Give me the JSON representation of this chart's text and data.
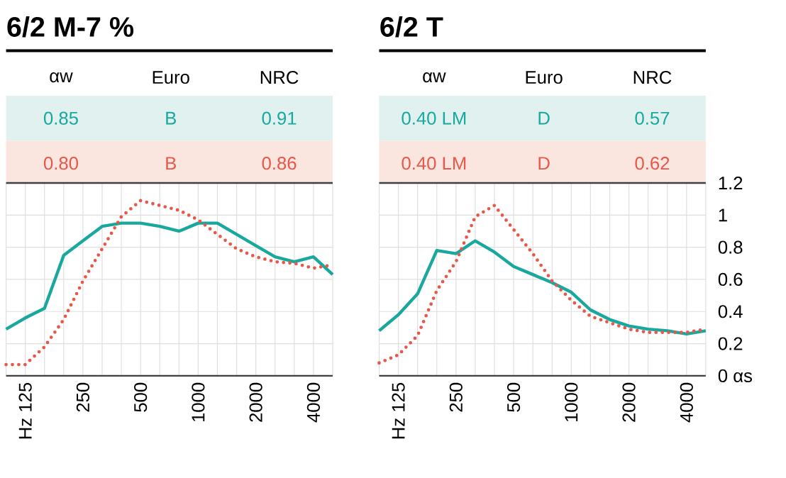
{
  "chart_data": [
    {
      "type": "line",
      "title": "6/2 M-7 %",
      "categories": [
        null,
        "Hz 125",
        null,
        null,
        "250",
        null,
        null,
        "500",
        null,
        null,
        "1000",
        null,
        null,
        "2000",
        null,
        null,
        "4000",
        null
      ],
      "series": [
        {
          "color": "#18a89e",
          "line_style": "solid",
          "values": [
            0.29,
            0.36,
            0.42,
            0.75,
            0.84,
            0.93,
            0.95,
            0.95,
            0.93,
            0.9,
            0.95,
            0.95,
            0.88,
            0.81,
            0.74,
            0.71,
            0.74,
            0.63
          ]
        },
        {
          "color": "#e5584a",
          "line_style": "dotted",
          "values": [
            0.07,
            0.07,
            0.18,
            0.35,
            0.59,
            0.79,
            0.99,
            1.09,
            1.06,
            1.03,
            0.97,
            0.88,
            0.79,
            0.74,
            0.71,
            0.7,
            0.67,
            0.69
          ]
        }
      ],
      "ylim": [
        0,
        1.2
      ],
      "yticks": [
        0,
        0.2,
        0.4,
        0.6,
        0.8,
        1,
        1.2
      ],
      "grid": true,
      "tick_labels": "x",
      "annotations": [
        "αw",
        "Euro",
        "NRC",
        "0.85",
        "B",
        "0.91",
        "0.80",
        "B",
        "0.86"
      ]
    },
    {
      "type": "line",
      "title": "6/2 T",
      "categories": [
        null,
        "Hz 125",
        null,
        null,
        "250",
        null,
        null,
        "500",
        null,
        null,
        "1000",
        null,
        null,
        "2000",
        null,
        null,
        "4000",
        null
      ],
      "series": [
        {
          "color": "#18a89e",
          "line_style": "solid",
          "values": [
            0.28,
            0.38,
            0.51,
            0.78,
            0.76,
            0.84,
            0.77,
            0.68,
            0.63,
            0.58,
            0.52,
            0.41,
            0.35,
            0.31,
            0.29,
            0.28,
            0.26,
            0.28
          ]
        },
        {
          "color": "#e5584a",
          "line_style": "dotted",
          "values": [
            0.08,
            0.13,
            0.25,
            0.53,
            0.71,
            0.99,
            1.06,
            0.91,
            0.76,
            0.59,
            0.47,
            0.37,
            0.33,
            0.29,
            0.27,
            0.27,
            0.27,
            0.29
          ]
        }
      ],
      "ylim": [
        0,
        1.2
      ],
      "yticks": [
        {
          "value": 0,
          "label": "0 αs"
        },
        0.2,
        0.4,
        0.6,
        0.8,
        1,
        1.2
      ],
      "grid": true,
      "annotations": [
        "αw",
        "Euro",
        "NRC",
        "0.40 LM",
        "D",
        "0.57",
        "0.40 LM",
        "D",
        "0.62"
      ]
    }
  ]
}
